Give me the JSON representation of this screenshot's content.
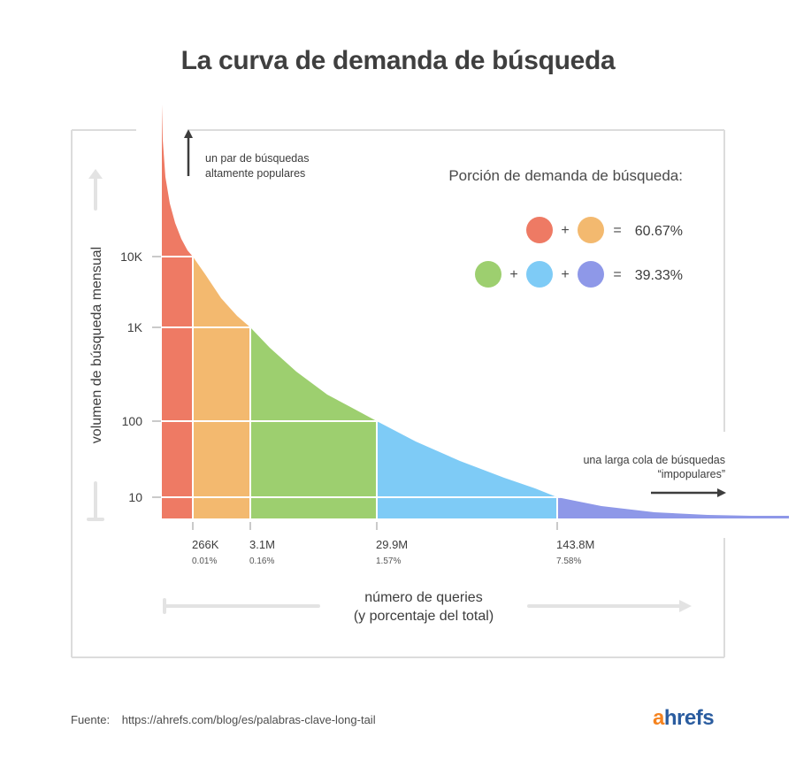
{
  "title": "La curva de demanda de búsqueda",
  "chart_data": {
    "type": "area",
    "title": "La curva de demanda de búsqueda",
    "ylabel": "volumen de búsqueda mensual",
    "xlabel_line1": "número de queries",
    "xlabel_line2": "(y porcentaje del total)",
    "y_scale": "log",
    "y_ticks": [
      "10K",
      "1K",
      "100",
      "10"
    ],
    "x_ticks": [
      {
        "label": "266K",
        "pct": "0.01%"
      },
      {
        "label": "3.1M",
        "pct": "0.16%"
      },
      {
        "label": "29.9M",
        "pct": "1.57%"
      },
      {
        "label": "143.8M",
        "pct": "7.58%"
      }
    ],
    "segments": [
      {
        "color": "#ee7a64"
      },
      {
        "color": "#f3b96f"
      },
      {
        "color": "#9dcf6f"
      },
      {
        "color": "#7ecbf6"
      },
      {
        "color": "#8e98e8"
      }
    ],
    "annotation_top_line1": "un par de búsquedas",
    "annotation_top_line2": "altamente populares",
    "annotation_tail_line1": "una larga cola de búsquedas",
    "annotation_tail_line2": "“impopulares”",
    "legend": {
      "title": "Porción de demanda de búsqueda:",
      "rows": [
        {
          "colors": [
            "#ee7a64",
            "#f3b96f"
          ],
          "value": "60.67%"
        },
        {
          "colors": [
            "#9dcf6f",
            "#7ecbf6",
            "#8e98e8"
          ],
          "value": "39.33%"
        }
      ],
      "plus": "+",
      "equals": "="
    },
    "grid": false
  },
  "footer": {
    "source_label": "Fuente:",
    "source_url": "https://ahrefs.com/blog/es/palabras-clave-long-tail"
  },
  "brand": {
    "a": "a",
    "rest": "hrefs"
  }
}
